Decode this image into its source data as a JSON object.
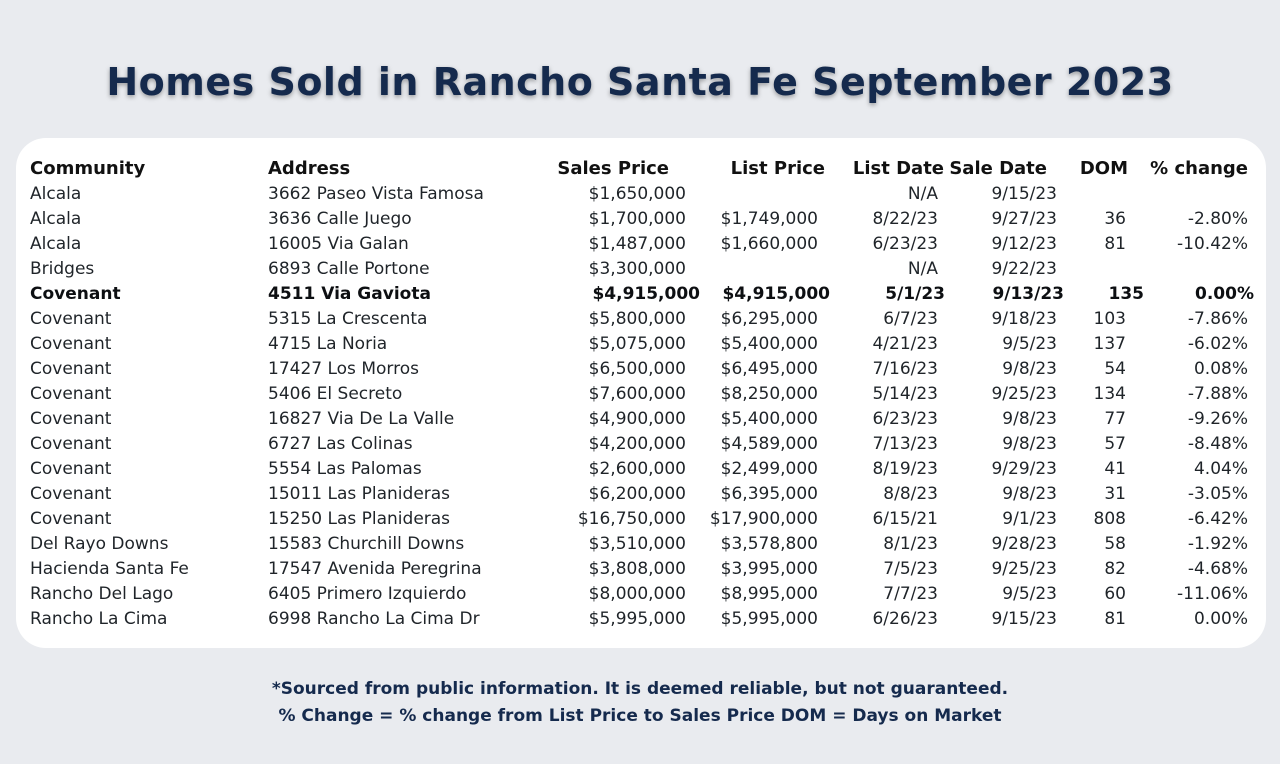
{
  "title": "Homes Sold in Rancho Santa Fe September 2023",
  "headers": {
    "community": "Community",
    "address": "Address",
    "sales_price": "Sales Price",
    "list_price": "List Price",
    "list_date": "List Date",
    "sale_date": "Sale Date",
    "dom": "DOM",
    "pct_change": "% change"
  },
  "rows": [
    {
      "community": "Alcala",
      "address": "3662 Paseo Vista Famosa",
      "sales_price": "$1,650,000",
      "list_price": "",
      "list_date": "N/A",
      "sale_date": "9/15/23",
      "dom": "",
      "pct_change": ""
    },
    {
      "community": "Alcala",
      "address": "3636 Calle Juego",
      "sales_price": "$1,700,000",
      "list_price": "$1,749,000",
      "list_date": "8/22/23",
      "sale_date": "9/27/23",
      "dom": "36",
      "pct_change": "-2.80%"
    },
    {
      "community": "Alcala",
      "address": "16005 Via Galan",
      "sales_price": "$1,487,000",
      "list_price": "$1,660,000",
      "list_date": "6/23/23",
      "sale_date": "9/12/23",
      "dom": "81",
      "pct_change": "-10.42%"
    },
    {
      "community": "Bridges",
      "address": "6893 Calle Portone",
      "sales_price": "$3,300,000",
      "list_price": "",
      "list_date": "N/A",
      "sale_date": "9/22/23",
      "dom": "",
      "pct_change": ""
    },
    {
      "community": "Covenant",
      "address": "4511 Via Gaviota",
      "sales_price": "$4,915,000",
      "list_price": "$4,915,000",
      "list_date": "5/1/23",
      "sale_date": "9/13/23",
      "dom": "135",
      "pct_change": "0.00%",
      "bold": true
    },
    {
      "community": "Covenant",
      "address": "5315 La Crescenta",
      "sales_price": "$5,800,000",
      "list_price": "$6,295,000",
      "list_date": "6/7/23",
      "sale_date": "9/18/23",
      "dom": "103",
      "pct_change": "-7.86%"
    },
    {
      "community": "Covenant",
      "address": "4715 La Noria",
      "sales_price": "$5,075,000",
      "list_price": "$5,400,000",
      "list_date": "4/21/23",
      "sale_date": "9/5/23",
      "dom": "137",
      "pct_change": "-6.02%"
    },
    {
      "community": "Covenant",
      "address": "17427 Los Morros",
      "sales_price": "$6,500,000",
      "list_price": "$6,495,000",
      "list_date": "7/16/23",
      "sale_date": "9/8/23",
      "dom": "54",
      "pct_change": "0.08%"
    },
    {
      "community": "Covenant",
      "address": "5406 El Secreto",
      "sales_price": "$7,600,000",
      "list_price": "$8,250,000",
      "list_date": "5/14/23",
      "sale_date": "9/25/23",
      "dom": "134",
      "pct_change": "-7.88%"
    },
    {
      "community": "Covenant",
      "address": "16827 Via De La Valle",
      "sales_price": "$4,900,000",
      "list_price": "$5,400,000",
      "list_date": "6/23/23",
      "sale_date": "9/8/23",
      "dom": "77",
      "pct_change": "-9.26%"
    },
    {
      "community": "Covenant",
      "address": "6727 Las Colinas",
      "sales_price": "$4,200,000",
      "list_price": "$4,589,000",
      "list_date": "7/13/23",
      "sale_date": "9/8/23",
      "dom": "57",
      "pct_change": "-8.48%"
    },
    {
      "community": "Covenant",
      "address": "5554 Las Palomas",
      "sales_price": "$2,600,000",
      "list_price": "$2,499,000",
      "list_date": "8/19/23",
      "sale_date": "9/29/23",
      "dom": "41",
      "pct_change": "4.04%"
    },
    {
      "community": "Covenant",
      "address": "15011 Las Planideras",
      "sales_price": "$6,200,000",
      "list_price": "$6,395,000",
      "list_date": "8/8/23",
      "sale_date": "9/8/23",
      "dom": "31",
      "pct_change": "-3.05%"
    },
    {
      "community": "Covenant",
      "address": "15250 Las Planideras",
      "sales_price": "$16,750,000",
      "list_price": "$17,900,000",
      "list_date": "6/15/21",
      "sale_date": "9/1/23",
      "dom": "808",
      "pct_change": "-6.42%"
    },
    {
      "community": "Del Rayo Downs",
      "address": "15583 Churchill Downs",
      "sales_price": "$3,510,000",
      "list_price": "$3,578,800",
      "list_date": "8/1/23",
      "sale_date": "9/28/23",
      "dom": "58",
      "pct_change": "-1.92%"
    },
    {
      "community": "Hacienda Santa Fe",
      "address": "17547 Avenida Peregrina",
      "sales_price": "$3,808,000",
      "list_price": "$3,995,000",
      "list_date": "7/5/23",
      "sale_date": "9/25/23",
      "dom": "82",
      "pct_change": "-4.68%"
    },
    {
      "community": "Rancho Del Lago",
      "address": "6405 Primero Izquierdo",
      "sales_price": "$8,000,000",
      "list_price": "$8,995,000",
      "list_date": "7/7/23",
      "sale_date": "9/5/23",
      "dom": "60",
      "pct_change": "-11.06%"
    },
    {
      "community": "Rancho La Cima",
      "address": "6998 Rancho La Cima Dr",
      "sales_price": "$5,995,000",
      "list_price": "$5,995,000",
      "list_date": "6/26/23",
      "sale_date": "9/15/23",
      "dom": "81",
      "pct_change": "0.00%"
    }
  ],
  "footer": {
    "line1": "*Sourced from public information. It is deemed reliable, but not guaranteed.",
    "line2": "% Change = % change from List Price to Sales Price DOM = Days on Market"
  },
  "colors": {
    "background": "#e9ebef",
    "title": "#152a4d",
    "card": "#ffffff"
  }
}
